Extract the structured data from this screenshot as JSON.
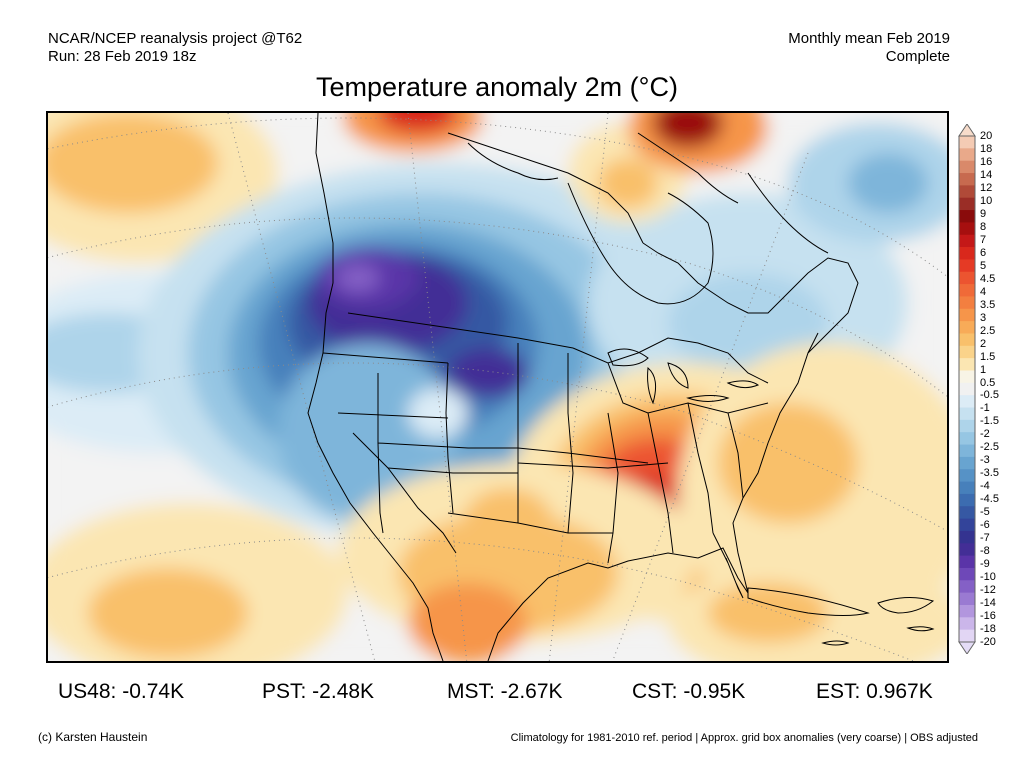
{
  "header": {
    "project": "NCAR/NCEP reanalysis project @T62",
    "run": "Run: 28 Feb 2019 18z",
    "period": "Monthly mean Feb 2019",
    "status": "Complete"
  },
  "title": "Temperature anomaly 2m (°C)",
  "colorbar": {
    "labels": [
      "20",
      "18",
      "16",
      "14",
      "12",
      "10",
      "9",
      "8",
      "7",
      "6",
      "5",
      "4.5",
      "4",
      "3.5",
      "3",
      "2.5",
      "2",
      "1.5",
      "1",
      "0.5",
      "-0.5",
      "-1",
      "-1.5",
      "-2",
      "-2.5",
      "-3",
      "-3.5",
      "-4",
      "-4.5",
      "-5",
      "-6",
      "-7",
      "-8",
      "-9",
      "-10",
      "-12",
      "-14",
      "-16",
      "-18",
      "-20"
    ],
    "colors": [
      "#f4cbb4",
      "#e9a98a",
      "#d9896a",
      "#c76a4f",
      "#b04a38",
      "#9a2d26",
      "#8a0b0b",
      "#a60f0f",
      "#c41818",
      "#d9281c",
      "#e53a25",
      "#ec5430",
      "#f06a38",
      "#f37f40",
      "#f6954a",
      "#f8ab58",
      "#f9c06b",
      "#fad38a",
      "#fbe6b2",
      "#f8f4e6",
      "#f1f1f1",
      "#dcecf6",
      "#c6e1f0",
      "#aed4ea",
      "#96c6e3",
      "#7eb5da",
      "#68a4d0",
      "#5692c6",
      "#4780bb",
      "#3c6cb0",
      "#3658a3",
      "#33449a",
      "#343390",
      "#432e96",
      "#5a34a8",
      "#6e48b8",
      "#8460c6",
      "#9a7ad2",
      "#b296de",
      "#cbb6ea",
      "#e2d6f4"
    ],
    "top_color": "#f7dccb",
    "bottom_color": "#e4dcf6"
  },
  "stats": [
    {
      "label": "US48: -0.74K"
    },
    {
      "label": "PST: -2.48K"
    },
    {
      "label": "MST: -2.67K"
    },
    {
      "label": "CST: -0.95K"
    },
    {
      "label": "EST: 0.967K"
    }
  ],
  "footer": {
    "credit": "(c) Karsten Haustein",
    "note": "Climatology for 1981-2010 ref. period | Approx. grid box anomalies (very coarse) | OBS adjusted"
  },
  "map": {
    "palette": {
      "warm_light": "#fbe6b2",
      "warm_mid": "#f9c06b",
      "warm": "#f6954a",
      "hot": "#ec5430",
      "red": "#d9281c",
      "dark_red": "#9a0d10",
      "cold_light": "#dcecf6",
      "cold": "#aed4ea",
      "colder": "#7eb5da",
      "blue": "#5692c6",
      "dark_blue": "#3c6cb0",
      "purple": "#5a34a8",
      "light_purple": "#8460c6",
      "neutral": "#f3f3f3"
    }
  }
}
